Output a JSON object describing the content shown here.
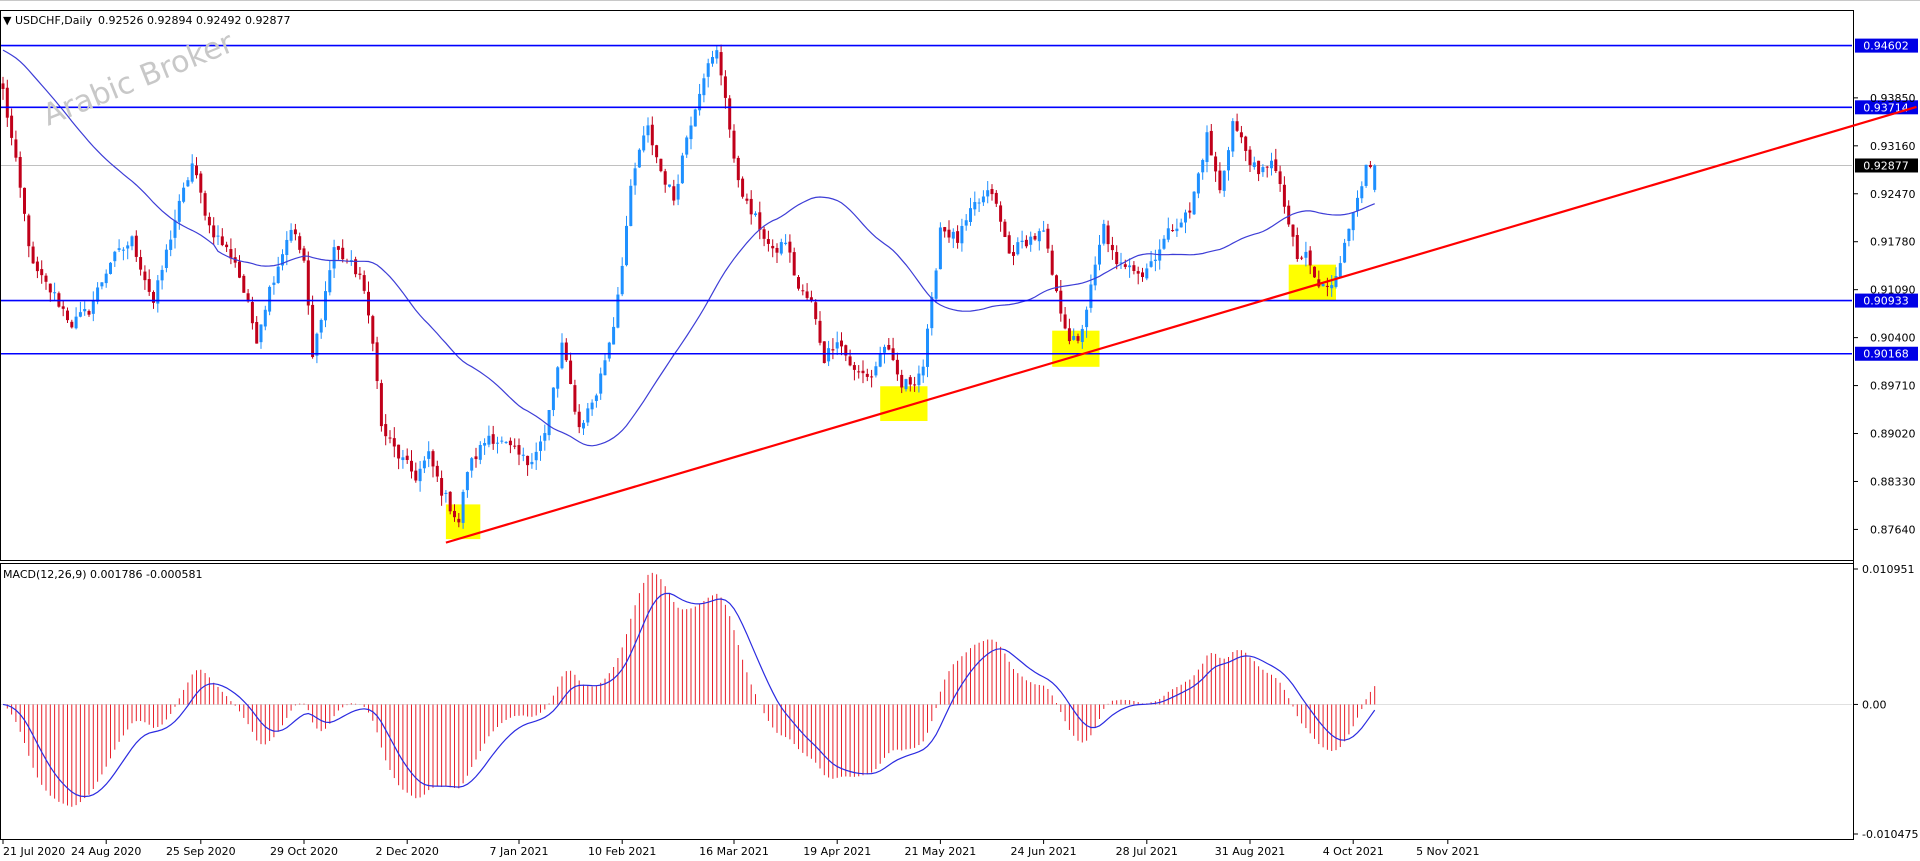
{
  "chart_data": [
    {
      "type": "candlestick",
      "symbol_label": "USDCHF,Daily",
      "ohlc_label": "0.92526 0.92894 0.92492 0.92877",
      "watermark": "Arabic Broker",
      "ylim": [
        0.872,
        0.951
      ],
      "ytick_labels": [
        "0.94602",
        "0.93850",
        "0.93714",
        "0.93160",
        "0.92877",
        "0.92470",
        "0.91780",
        "0.91090",
        "0.90933",
        "0.90400",
        "0.90168",
        "0.89710",
        "0.89020",
        "0.88330",
        "0.87640"
      ],
      "yticks": [
        0.9385,
        0.9316,
        0.9247,
        0.9178,
        0.9109,
        0.904,
        0.8971,
        0.8902,
        0.8833,
        0.8764
      ],
      "x_tick_labels": [
        "21 Jul 2020",
        "24 Aug 2020",
        "25 Sep 2020",
        "29 Oct 2020",
        "2 Dec 2020",
        "7 Jan 2021",
        "10 Feb 2021",
        "16 Mar 2021",
        "19 Apr 2021",
        "21 May 2021",
        "24 Jun 2021",
        "28 Jul 2021",
        "31 Aug 2021",
        "4 Oct 2021",
        "5 Nov 2021"
      ],
      "x_tick_index": [
        0,
        24,
        46,
        70,
        94,
        120,
        144,
        170,
        194,
        218,
        242,
        266,
        290,
        314,
        336
      ],
      "horizontal_levels": [
        0.94602,
        0.93714,
        0.90933,
        0.90168
      ],
      "level_labels": [
        "0.94602",
        "0.93714",
        "0.90933",
        "0.90168"
      ],
      "current_price": 0.92877,
      "current_price_label": "0.92877",
      "trendline": {
        "from": [
          103,
          0.8745
        ],
        "to": [
          445,
          0.9372
        ],
        "color": "#ff0000"
      },
      "highlight_zones": [
        {
          "x0": 103,
          "x1": 111,
          "y0": 0.875,
          "y1": 0.88
        },
        {
          "x0": 204,
          "x1": 215,
          "y0": 0.892,
          "y1": 0.897
        },
        {
          "x0": 244,
          "x1": 255,
          "y0": 0.8998,
          "y1": 0.905
        },
        {
          "x0": 299,
          "x1": 310,
          "y0": 0.9093,
          "y1": 0.9145
        }
      ],
      "bull_color": "#1e90ff",
      "bear_color": "#c0001a",
      "ma_color": "#3d3dd6",
      "ma_period": 50,
      "anchors": [
        [
          0,
          0.9395
        ],
        [
          3,
          0.929
        ],
        [
          7,
          0.914
        ],
        [
          12,
          0.91
        ],
        [
          16,
          0.906
        ],
        [
          20,
          0.908
        ],
        [
          25,
          0.915
        ],
        [
          30,
          0.918
        ],
        [
          35,
          0.909
        ],
        [
          40,
          0.921
        ],
        [
          44,
          0.929
        ],
        [
          48,
          0.92
        ],
        [
          54,
          0.915
        ],
        [
          59,
          0.904
        ],
        [
          62,
          0.911
        ],
        [
          67,
          0.92
        ],
        [
          70,
          0.915
        ],
        [
          72,
          0.901
        ],
        [
          77,
          0.917
        ],
        [
          83,
          0.913
        ],
        [
          86,
          0.904
        ],
        [
          88,
          0.891
        ],
        [
          92,
          0.887
        ],
        [
          96,
          0.884
        ],
        [
          99,
          0.887
        ],
        [
          102,
          0.882
        ],
        [
          106,
          0.8775
        ],
        [
          108,
          0.885
        ],
        [
          113,
          0.89
        ],
        [
          118,
          0.888
        ],
        [
          122,
          0.886
        ],
        [
          126,
          0.89
        ],
        [
          130,
          0.903
        ],
        [
          134,
          0.891
        ],
        [
          138,
          0.896
        ],
        [
          142,
          0.906
        ],
        [
          144,
          0.915
        ],
        [
          146,
          0.925
        ],
        [
          148,
          0.931
        ],
        [
          150,
          0.934
        ],
        [
          153,
          0.928
        ],
        [
          156,
          0.924
        ],
        [
          159,
          0.933
        ],
        [
          163,
          0.942
        ],
        [
          166,
          0.945
        ],
        [
          168,
          0.939
        ],
        [
          170,
          0.929
        ],
        [
          173,
          0.923
        ],
        [
          176,
          0.92
        ],
        [
          179,
          0.916
        ],
        [
          182,
          0.918
        ],
        [
          185,
          0.911
        ],
        [
          188,
          0.909
        ],
        [
          191,
          0.901
        ],
        [
          194,
          0.904
        ],
        [
          198,
          0.899
        ],
        [
          202,
          0.8985
        ],
        [
          205,
          0.903
        ],
        [
          209,
          0.897
        ],
        [
          212,
          0.898
        ],
        [
          214,
          0.9
        ],
        [
          216,
          0.909
        ],
        [
          218,
          0.92
        ],
        [
          222,
          0.918
        ],
        [
          226,
          0.923
        ],
        [
          230,
          0.925
        ],
        [
          234,
          0.916
        ],
        [
          238,
          0.918
        ],
        [
          242,
          0.919
        ],
        [
          245,
          0.91
        ],
        [
          248,
          0.904
        ],
        [
          250,
          0.903
        ],
        [
          253,
          0.911
        ],
        [
          256,
          0.92
        ],
        [
          259,
          0.914
        ],
        [
          262,
          0.915
        ],
        [
          265,
          0.913
        ],
        [
          268,
          0.916
        ],
        [
          272,
          0.92
        ],
        [
          276,
          0.922
        ],
        [
          280,
          0.933
        ],
        [
          283,
          0.925
        ],
        [
          286,
          0.935
        ],
        [
          289,
          0.931
        ],
        [
          292,
          0.927
        ],
        [
          295,
          0.93
        ],
        [
          298,
          0.923
        ],
        [
          301,
          0.915
        ],
        [
          303,
          0.916
        ],
        [
          306,
          0.911
        ],
        [
          309,
          0.912
        ],
        [
          312,
          0.917
        ],
        [
          315,
          0.925
        ],
        [
          317,
          0.928
        ],
        [
          319,
          0.928
        ]
      ]
    },
    {
      "type": "bar",
      "indicator_label": "MACD(12,26,9) 0.001786 -0.000581",
      "ylim": [
        -0.010475,
        0.010951
      ],
      "ytick_labels": [
        "0.010951",
        "0.00",
        "-0.010475"
      ],
      "hist_color": "#e8202a",
      "signal_color": "#2b2be0"
    }
  ]
}
